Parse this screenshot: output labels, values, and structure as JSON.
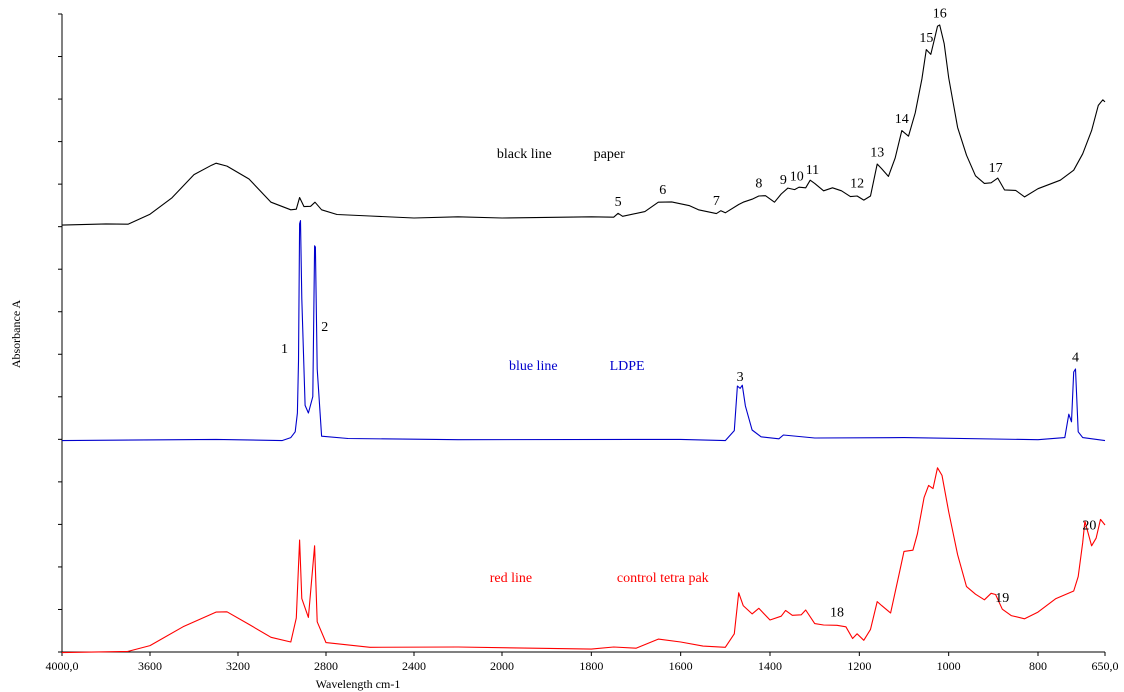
{
  "chart_data": {
    "type": "line",
    "xlabel": "Wavelength cm-1",
    "ylabel": "Absorbance A",
    "xlim": [
      4000,
      650
    ],
    "x_reversed": true,
    "x_ticks": [
      {
        "value": 4000,
        "label": "4000,0"
      },
      {
        "value": 3600,
        "label": "3600"
      },
      {
        "value": 3200,
        "label": "3200"
      },
      {
        "value": 2800,
        "label": "2800"
      },
      {
        "value": 2400,
        "label": "2400"
      },
      {
        "value": 2000,
        "label": "2000"
      },
      {
        "value": 1800,
        "label": "1800"
      },
      {
        "value": 1600,
        "label": "1600"
      },
      {
        "value": 1400,
        "label": "1400"
      },
      {
        "value": 1200,
        "label": "1200"
      },
      {
        "value": 1000,
        "label": "1000"
      },
      {
        "value": 800,
        "label": "800"
      },
      {
        "value": 650,
        "label": "650,0"
      }
    ],
    "annotations": [
      {
        "text": "black line",
        "color": "#000000",
        "x": 1950,
        "series": "black"
      },
      {
        "text": "paper",
        "color": "#000000",
        "x": 1760,
        "series": "black"
      },
      {
        "text": "blue line",
        "color": "#0000cc",
        "x": 1930,
        "series": "blue"
      },
      {
        "text": "LDPE",
        "color": "#0000cc",
        "x": 1720,
        "series": "blue"
      },
      {
        "text": "red line",
        "color": "#ff0000",
        "x": 1980,
        "series": "red"
      },
      {
        "text": "control tetra pak",
        "color": "#ff0000",
        "x": 1640,
        "series": "red"
      }
    ],
    "series": [
      {
        "color": "#000000",
        "offset": 2,
        "points": [
          [
            4000,
            0.04
          ],
          [
            3800,
            0.04
          ],
          [
            3700,
            0.05
          ],
          [
            3600,
            0.15
          ],
          [
            3500,
            0.35
          ],
          [
            3400,
            0.6
          ],
          [
            3320,
            0.72
          ],
          [
            3300,
            0.73
          ],
          [
            3250,
            0.71
          ],
          [
            3150,
            0.55
          ],
          [
            3050,
            0.3
          ],
          [
            2960,
            0.2
          ],
          [
            2935,
            0.22
          ],
          [
            2920,
            0.34
          ],
          [
            2900,
            0.25
          ],
          [
            2870,
            0.24
          ],
          [
            2850,
            0.3
          ],
          [
            2820,
            0.2
          ],
          [
            2750,
            0.16
          ],
          [
            2600,
            0.13
          ],
          [
            2400,
            0.12
          ],
          [
            2200,
            0.12
          ],
          [
            2000,
            0.12
          ],
          [
            1800,
            0.12
          ],
          [
            1750,
            0.13
          ],
          [
            1740,
            0.16
          ],
          [
            1730,
            0.14
          ],
          [
            1680,
            0.18
          ],
          [
            1650,
            0.3
          ],
          [
            1620,
            0.29
          ],
          [
            1580,
            0.26
          ],
          [
            1560,
            0.2
          ],
          [
            1520,
            0.17
          ],
          [
            1510,
            0.19
          ],
          [
            1500,
            0.18
          ],
          [
            1470,
            0.26
          ],
          [
            1460,
            0.3
          ],
          [
            1440,
            0.32
          ],
          [
            1425,
            0.37
          ],
          [
            1410,
            0.36
          ],
          [
            1390,
            0.3
          ],
          [
            1375,
            0.38
          ],
          [
            1360,
            0.46
          ],
          [
            1345,
            0.43
          ],
          [
            1335,
            0.47
          ],
          [
            1320,
            0.45
          ],
          [
            1310,
            0.55
          ],
          [
            1300,
            0.5
          ],
          [
            1280,
            0.43
          ],
          [
            1260,
            0.45
          ],
          [
            1240,
            0.43
          ],
          [
            1220,
            0.35
          ],
          [
            1205,
            0.37
          ],
          [
            1190,
            0.31
          ],
          [
            1175,
            0.37
          ],
          [
            1160,
            0.72
          ],
          [
            1150,
            0.68
          ],
          [
            1135,
            0.58
          ],
          [
            1120,
            0.8
          ],
          [
            1105,
            1.1
          ],
          [
            1090,
            1.05
          ],
          [
            1075,
            1.3
          ],
          [
            1060,
            1.7
          ],
          [
            1050,
            2.02
          ],
          [
            1040,
            1.98
          ],
          [
            1030,
            2.18
          ],
          [
            1025,
            2.3
          ],
          [
            1020,
            2.3
          ],
          [
            1010,
            2.1
          ],
          [
            1000,
            1.7
          ],
          [
            980,
            1.15
          ],
          [
            960,
            0.82
          ],
          [
            940,
            0.6
          ],
          [
            920,
            0.5
          ],
          [
            905,
            0.52
          ],
          [
            890,
            0.56
          ],
          [
            875,
            0.44
          ],
          [
            850,
            0.42
          ],
          [
            830,
            0.36
          ],
          [
            800,
            0.44
          ],
          [
            750,
            0.55
          ],
          [
            720,
            0.65
          ],
          [
            700,
            0.85
          ],
          [
            680,
            1.1
          ],
          [
            665,
            1.4
          ],
          [
            655,
            1.45
          ],
          [
            650,
            1.44
          ]
        ]
      },
      {
        "color": "#0000cc",
        "offset": 1,
        "points": [
          [
            4000,
            0.0
          ],
          [
            3300,
            0.0
          ],
          [
            3000,
            0.0
          ],
          [
            2960,
            0.02
          ],
          [
            2940,
            0.1
          ],
          [
            2930,
            0.3
          ],
          [
            2925,
            0.9
          ],
          [
            2920,
            2.45
          ],
          [
            2916,
            2.5
          ],
          [
            2910,
            1.6
          ],
          [
            2895,
            0.4
          ],
          [
            2880,
            0.3
          ],
          [
            2860,
            0.5
          ],
          [
            2852,
            2.2
          ],
          [
            2848,
            2.2
          ],
          [
            2840,
            0.8
          ],
          [
            2820,
            0.05
          ],
          [
            2700,
            0.01
          ],
          [
            2200,
            0.01
          ],
          [
            1600,
            0.0
          ],
          [
            1500,
            0.0
          ],
          [
            1480,
            0.1
          ],
          [
            1473,
            0.62
          ],
          [
            1467,
            0.58
          ],
          [
            1462,
            0.63
          ],
          [
            1455,
            0.38
          ],
          [
            1440,
            0.12
          ],
          [
            1420,
            0.03
          ],
          [
            1380,
            0.02
          ],
          [
            1370,
            0.05
          ],
          [
            1300,
            0.03
          ],
          [
            1100,
            0.02
          ],
          [
            800,
            0.01
          ],
          [
            740,
            0.02
          ],
          [
            731,
            0.3
          ],
          [
            725,
            0.2
          ],
          [
            720,
            0.78
          ],
          [
            716,
            0.8
          ],
          [
            710,
            0.1
          ],
          [
            700,
            0.02
          ],
          [
            650,
            0.0
          ]
        ]
      },
      {
        "color": "#ff0000",
        "offset": 0,
        "points": [
          [
            4000,
            0.0
          ],
          [
            3700,
            0.0
          ],
          [
            3600,
            0.08
          ],
          [
            3450,
            0.28
          ],
          [
            3300,
            0.46
          ],
          [
            3250,
            0.45
          ],
          [
            3150,
            0.32
          ],
          [
            3050,
            0.16
          ],
          [
            2960,
            0.12
          ],
          [
            2935,
            0.38
          ],
          [
            2920,
            1.28
          ],
          [
            2910,
            0.6
          ],
          [
            2880,
            0.4
          ],
          [
            2852,
            1.2
          ],
          [
            2840,
            0.35
          ],
          [
            2800,
            0.1
          ],
          [
            2600,
            0.06
          ],
          [
            2200,
            0.05
          ],
          [
            1800,
            0.04
          ],
          [
            1750,
            0.05
          ],
          [
            1700,
            0.05
          ],
          [
            1650,
            0.14
          ],
          [
            1600,
            0.12
          ],
          [
            1550,
            0.06
          ],
          [
            1500,
            0.06
          ],
          [
            1480,
            0.2
          ],
          [
            1470,
            0.68
          ],
          [
            1460,
            0.52
          ],
          [
            1440,
            0.44
          ],
          [
            1425,
            0.49
          ],
          [
            1400,
            0.37
          ],
          [
            1375,
            0.4
          ],
          [
            1365,
            0.48
          ],
          [
            1350,
            0.41
          ],
          [
            1330,
            0.43
          ],
          [
            1320,
            0.47
          ],
          [
            1300,
            0.33
          ],
          [
            1280,
            0.3
          ],
          [
            1250,
            0.31
          ],
          [
            1230,
            0.28
          ],
          [
            1215,
            0.16
          ],
          [
            1205,
            0.2
          ],
          [
            1190,
            0.14
          ],
          [
            1175,
            0.25
          ],
          [
            1160,
            0.58
          ],
          [
            1150,
            0.52
          ],
          [
            1130,
            0.45
          ],
          [
            1110,
            0.9
          ],
          [
            1100,
            1.15
          ],
          [
            1080,
            1.15
          ],
          [
            1070,
            1.35
          ],
          [
            1055,
            1.75
          ],
          [
            1045,
            1.9
          ],
          [
            1035,
            1.85
          ],
          [
            1025,
            2.1
          ],
          [
            1015,
            2.0
          ],
          [
            1000,
            1.6
          ],
          [
            980,
            1.1
          ],
          [
            960,
            0.75
          ],
          [
            940,
            0.65
          ],
          [
            920,
            0.6
          ],
          [
            905,
            0.66
          ],
          [
            895,
            0.66
          ],
          [
            880,
            0.48
          ],
          [
            860,
            0.42
          ],
          [
            830,
            0.37
          ],
          [
            800,
            0.46
          ],
          [
            760,
            0.6
          ],
          [
            720,
            0.7
          ],
          [
            710,
            0.85
          ],
          [
            700,
            1.25
          ],
          [
            695,
            1.48
          ],
          [
            690,
            1.4
          ],
          [
            680,
            1.2
          ],
          [
            670,
            1.3
          ],
          [
            660,
            1.5
          ],
          [
            650,
            1.45
          ]
        ]
      }
    ],
    "peak_labels": [
      {
        "text": "1",
        "x": 2925,
        "series": "blue"
      },
      {
        "text": "2",
        "x": 2842,
        "series": "blue"
      },
      {
        "text": "3",
        "x": 1467,
        "series": "blue"
      },
      {
        "text": "4",
        "x": 716,
        "series": "blue"
      },
      {
        "text": "5",
        "x": 1740,
        "series": "black"
      },
      {
        "text": "6",
        "x": 1640,
        "series": "black"
      },
      {
        "text": "7",
        "x": 1520,
        "series": "black"
      },
      {
        "text": "8",
        "x": 1425,
        "series": "black"
      },
      {
        "text": "9",
        "x": 1370,
        "series": "black"
      },
      {
        "text": "10",
        "x": 1340,
        "series": "black"
      },
      {
        "text": "11",
        "x": 1305,
        "series": "black"
      },
      {
        "text": "12",
        "x": 1205,
        "series": "black"
      },
      {
        "text": "13",
        "x": 1160,
        "series": "black"
      },
      {
        "text": "14",
        "x": 1105,
        "series": "black"
      },
      {
        "text": "15",
        "x": 1050,
        "series": "black"
      },
      {
        "text": "16",
        "x": 1020,
        "series": "black"
      },
      {
        "text": "17",
        "x": 895,
        "series": "black"
      },
      {
        "text": "18",
        "x": 1250,
        "series": "red"
      },
      {
        "text": "19",
        "x": 880,
        "series": "red"
      },
      {
        "text": "20",
        "x": 685,
        "series": "red"
      }
    ]
  }
}
